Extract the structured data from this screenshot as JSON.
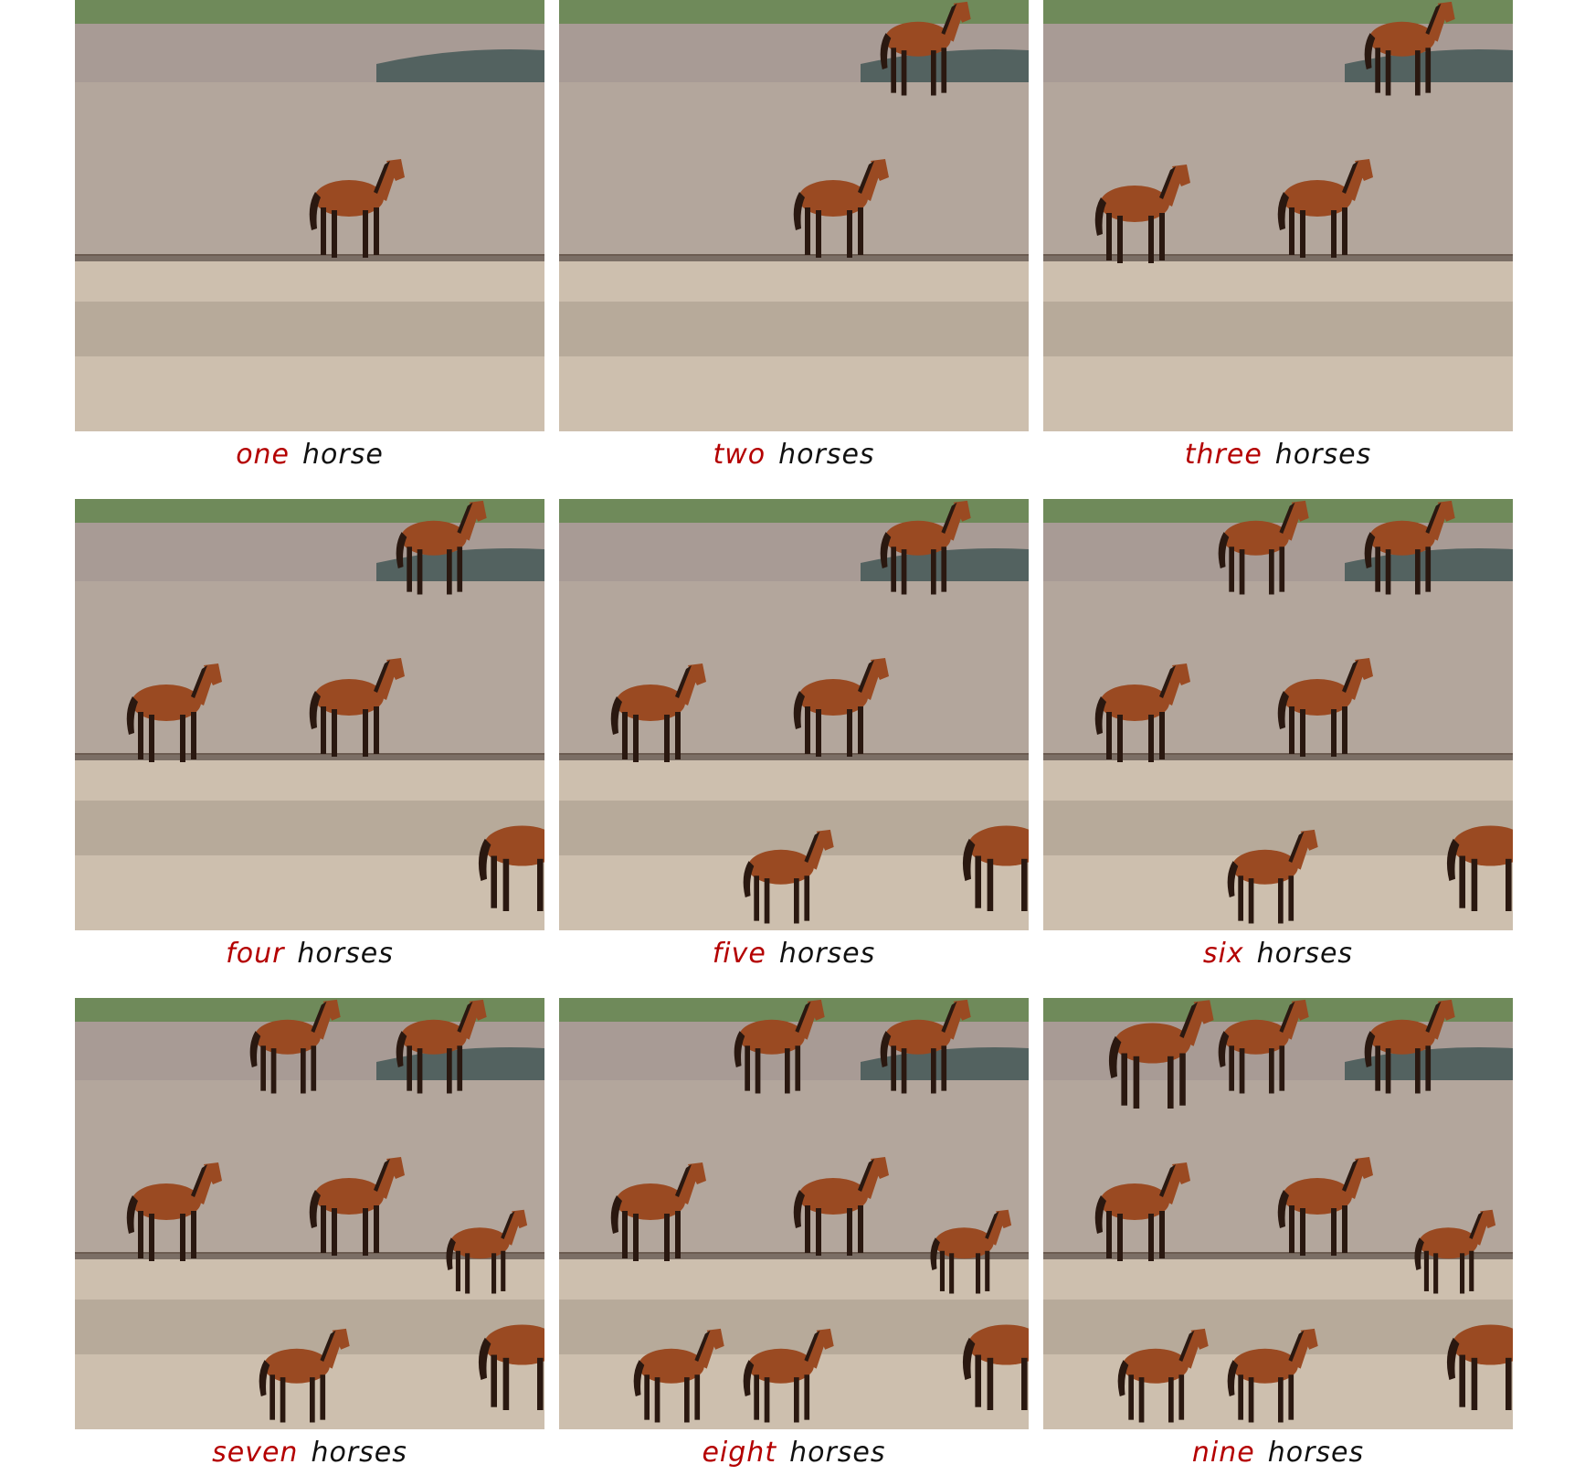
{
  "colors": {
    "count_word": "#b40000",
    "noun_word": "#111111",
    "sky_field": "#6f8a5a",
    "hills": "#a89b95",
    "plain": "#b3a69c",
    "foreground": "#cdbfae",
    "horse_coat": "#9a4a22",
    "horse_legs": "#2a1810"
  },
  "panels": [
    {
      "count": "one",
      "noun": "horse",
      "horses_depicted": 1
    },
    {
      "count": "two",
      "noun": "horses",
      "horses_depicted": 2
    },
    {
      "count": "three",
      "noun": "horses",
      "horses_depicted": 3
    },
    {
      "count": "four",
      "noun": "horses",
      "horses_depicted": 4
    },
    {
      "count": "five",
      "noun": "horses",
      "horses_depicted": 5
    },
    {
      "count": "six",
      "noun": "horses",
      "horses_depicted": 6
    },
    {
      "count": "seven",
      "noun": "horses",
      "horses_depicted": 7
    },
    {
      "count": "eight",
      "noun": "horses",
      "horses_depicted": 8
    },
    {
      "count": "nine",
      "noun": "horses",
      "horses_depicted": 9
    }
  ]
}
